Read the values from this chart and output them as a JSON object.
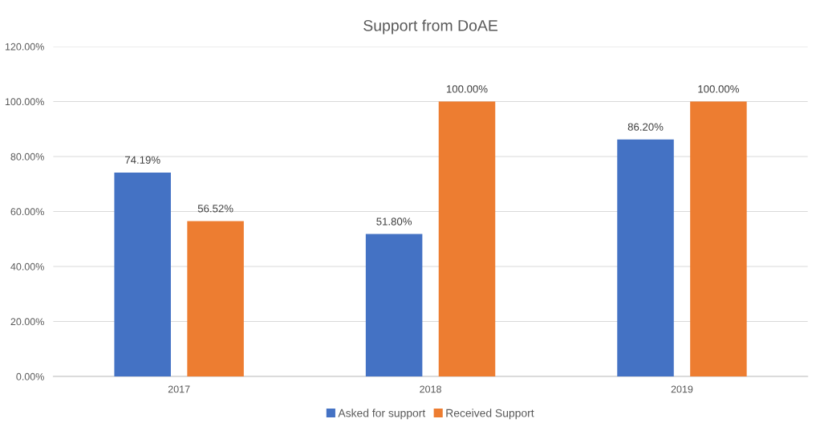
{
  "chart_data": {
    "type": "bar",
    "title": "Support from DoAE",
    "categories": [
      "2017",
      "2018",
      "2019"
    ],
    "series": [
      {
        "name": "Asked for support",
        "color": "#4472c4",
        "values": [
          74.19,
          51.8,
          86.2
        ],
        "value_labels": [
          "74.19%",
          "51.80%",
          "86.20%"
        ]
      },
      {
        "name": "Received Support",
        "color": "#ed7d31",
        "values": [
          56.52,
          100,
          100
        ],
        "value_labels": [
          "56.52%",
          "100.00%",
          "100.00%"
        ]
      }
    ],
    "ylim": [
      0,
      120
    ],
    "yticks": [
      {
        "value": 0,
        "label": "0.00%"
      },
      {
        "value": 20,
        "label": "20.00%"
      },
      {
        "value": 40,
        "label": "40.00%"
      },
      {
        "value": 60,
        "label": "60.00%"
      },
      {
        "value": 80,
        "label": "80.00%"
      },
      {
        "value": 100,
        "label": "100.00%"
      },
      {
        "value": 120,
        "label": "120.00%"
      }
    ],
    "grid": "y",
    "legend": "bottom"
  }
}
